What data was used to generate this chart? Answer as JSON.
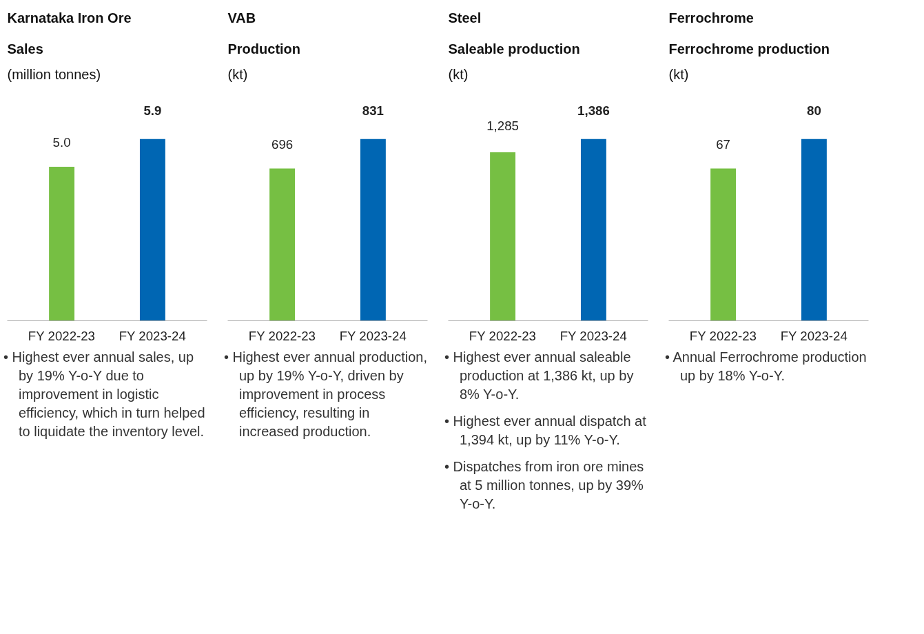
{
  "chart_data": [
    {
      "type": "bar",
      "title": "Karnataka Iron Ore",
      "subtitle": "Sales",
      "ylabel": "(million tonnes)",
      "categories": [
        "FY 2022-23",
        "FY 2023-24"
      ],
      "values": [
        5.0,
        5.9
      ],
      "colors": [
        "#76bf43",
        "#0066b3"
      ],
      "data_labels": true,
      "value_labels": [
        "5.0",
        "5.9"
      ],
      "tick_labels": "x",
      "annotations": [
        "• Highest ever annual sales, up by 19% Y-o-Y due to improvement in logistic efficiency, which in turn helped to liquidate the inventory level."
      ]
    },
    {
      "type": "bar",
      "title": "VAB",
      "subtitle": "Production",
      "ylabel": "(kt)",
      "categories": [
        "FY 2022-23",
        "FY 2023-24"
      ],
      "values": [
        696,
        831
      ],
      "colors": [
        "#76bf43",
        "#0066b3"
      ],
      "data_labels": true,
      "tick_labels": "x",
      "annotations": [
        "• Highest ever annual production, up by 19% Y-o-Y, driven by improvement in process efficiency, resulting in increased production."
      ]
    },
    {
      "type": "bar",
      "title": "Steel",
      "subtitle": "Saleable production",
      "ylabel": "(kt)",
      "categories": [
        "FY 2022-23",
        "FY 2023-24"
      ],
      "values": [
        1285,
        1386
      ],
      "colors": [
        "#76bf43",
        "#0066b3"
      ],
      "data_labels": true,
      "value_labels": [
        "1,285",
        "1,386"
      ],
      "tick_labels": "x",
      "annotations": [
        "• Highest ever annual saleable production at 1,386 kt, up by 8% Y-o-Y.",
        "• Highest ever annual dispatch at 1,394 kt, up by 11% Y-o-Y.",
        "• Dispatches from iron ore mines at 5 million tonnes, up by 39% Y-o-Y."
      ]
    },
    {
      "type": "bar",
      "title": "Ferrochrome",
      "subtitle": "Ferrochrome production",
      "ylabel": "(kt)",
      "categories": [
        "FY 2022-23",
        "FY 2023-24"
      ],
      "values": [
        67,
        80
      ],
      "colors": [
        "#76bf43",
        "#0066b3"
      ],
      "data_labels": true,
      "tick_labels": "x",
      "annotations": [
        "• Annual Ferrochrome production up by 18% Y-o-Y."
      ]
    }
  ]
}
